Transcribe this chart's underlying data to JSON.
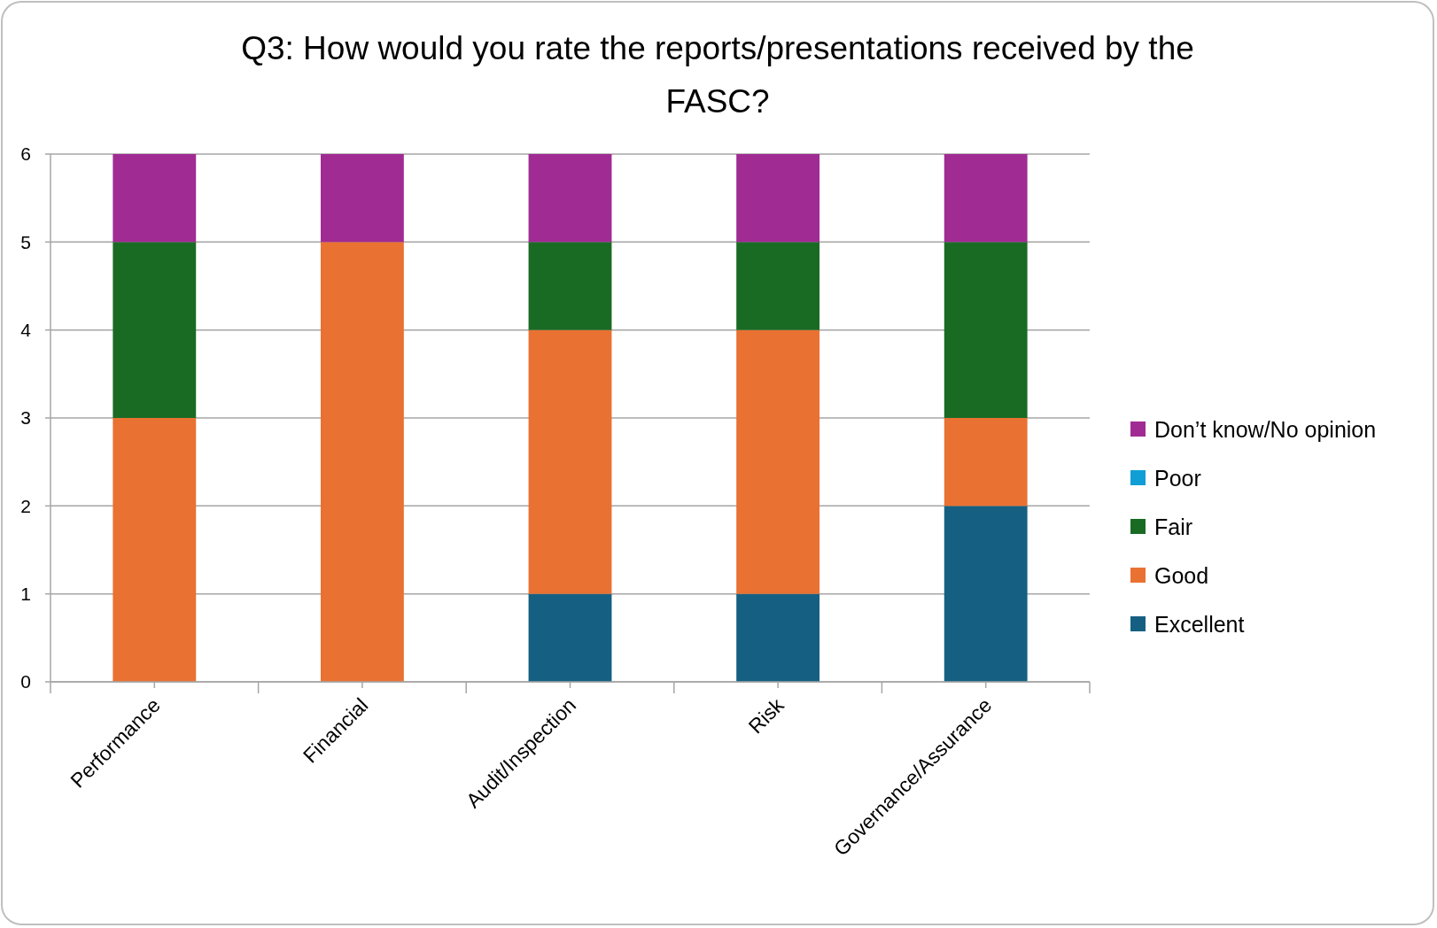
{
  "chart_data": {
    "type": "bar",
    "title": "Q3: How would you rate the reports/presentations received by the FASC?",
    "categories": [
      "Performance",
      "Financial",
      "Audit/Inspection",
      "Risk",
      "Governance/Assurance"
    ],
    "stacked": true,
    "series": [
      {
        "name": "Excellent",
        "color": "#156082",
        "values": [
          0,
          0,
          1,
          1,
          2
        ]
      },
      {
        "name": "Good",
        "color": "#e97132",
        "values": [
          3,
          5,
          3,
          3,
          1
        ]
      },
      {
        "name": "Fair",
        "color": "#196b24",
        "values": [
          2,
          0,
          1,
          1,
          2
        ]
      },
      {
        "name": "Poor",
        "color": "#0f9ed5",
        "values": [
          0,
          0,
          0,
          0,
          0
        ]
      },
      {
        "name": "Don’t know/No opinion",
        "color": "#a02b93",
        "values": [
          1,
          1,
          1,
          1,
          1
        ]
      }
    ],
    "ylim": [
      0,
      6
    ],
    "yticks": [
      0,
      1,
      2,
      3,
      4,
      5,
      6
    ],
    "grid": "y",
    "legend": "right"
  }
}
